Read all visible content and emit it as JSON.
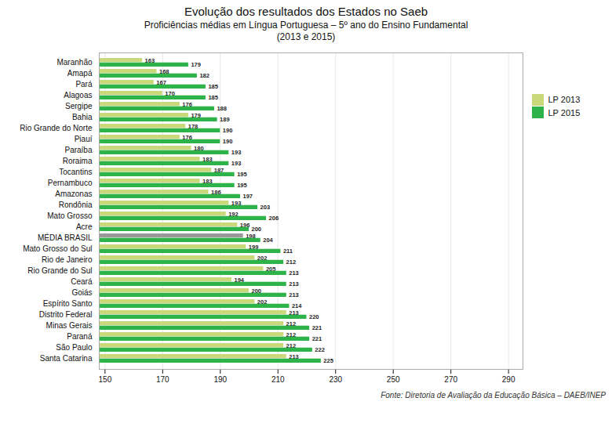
{
  "chart_data": {
    "type": "bar",
    "orientation": "horizontal",
    "title": "Evolução dos resultados dos Estados no Saeb",
    "subtitle": "Proficiências médias em Língua Portuguesa – 5º ano do Ensino Fundamental\n(2013 e 2015)",
    "annotations": [
      "Fonte: Diretoria de Avaliação da Educação Básica – DAEB/INEP"
    ],
    "categories": [
      "Maranhão",
      "Amapá",
      "Pará",
      "Alagoas",
      "Sergipe",
      "Bahia",
      "Rio Grande do Norte",
      "Piauí",
      "Paraíba",
      "Roraima",
      "Tocantins",
      "Pernambuco",
      "Amazonas",
      "Rondônia",
      "Mato Grosso",
      "Acre",
      "MÉDIA BRASIL",
      "Mato Grosso do Sul",
      "Rio de Janeiro",
      "Rio Grande do Sul",
      "Ceará",
      "Goiás",
      "Espírito Santo",
      "Distrito Federal",
      "Minas Gerais",
      "Paraná",
      "São Paulo",
      "Santa Catarina"
    ],
    "series": [
      {
        "name": "LP 2013",
        "color": "#c8d87a",
        "colors": [
          "#c8d87a",
          "#c8d87a",
          "#c8d87a",
          "#c8d87a",
          "#c8d87a",
          "#c8d87a",
          "#c8d87a",
          "#c8d87a",
          "#c8d87a",
          "#c8d87a",
          "#c8d87a",
          "#c8d87a",
          "#c8d87a",
          "#c8d87a",
          "#c8d87a",
          "#c8d87a",
          "#999999",
          "#c8d87a",
          "#c8d87a",
          "#c8d87a",
          "#c8d87a",
          "#c8d87a",
          "#c8d87a",
          "#c8d87a",
          "#c8d87a",
          "#c8d87a",
          "#c8d87a",
          "#c8d87a"
        ],
        "values": [
          163,
          168,
          167,
          170,
          176,
          179,
          178,
          176,
          180,
          183,
          187,
          183,
          186,
          193,
          192,
          196,
          198,
          199,
          202,
          205,
          194,
          200,
          202,
          213,
          212,
          212,
          212,
          213
        ]
      },
      {
        "name": "LP 2015",
        "color": "#2db34a",
        "values": [
          179,
          182,
          185,
          185,
          188,
          189,
          190,
          190,
          193,
          193,
          195,
          195,
          197,
          203,
          206,
          200,
          204,
          211,
          212,
          213,
          213,
          213,
          214,
          220,
          221,
          221,
          222,
          225
        ]
      }
    ],
    "xlim": [
      148,
      295
    ],
    "xticks": [
      150,
      170,
      190,
      210,
      230,
      250,
      270,
      290
    ],
    "grid": true,
    "legend": "right",
    "data_labels": true
  }
}
